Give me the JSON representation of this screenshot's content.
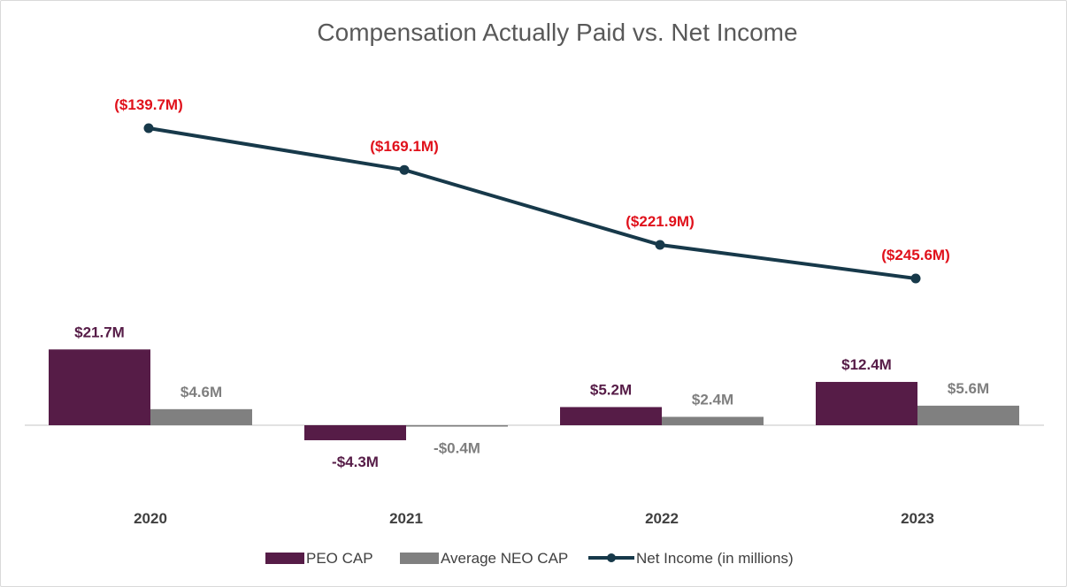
{
  "chart_data": {
    "type": "bar",
    "title": "Compensation Actually Paid vs. Net Income",
    "categories": [
      "2020",
      "2021",
      "2022",
      "2023"
    ],
    "series": [
      {
        "name": "PEO CAP",
        "kind": "bar",
        "color": "#561c47",
        "values": [
          21.7,
          -4.3,
          5.2,
          12.4
        ],
        "labels": [
          "$21.7M",
          "-$4.3M",
          "$5.2M",
          "$12.4M"
        ],
        "label_color": "#561c47"
      },
      {
        "name": "Average NEO CAP",
        "kind": "bar",
        "color": "#808080",
        "values": [
          4.6,
          -0.4,
          2.4,
          5.6
        ],
        "labels": [
          "$4.6M",
          "-$0.4M",
          "$2.4M",
          "$5.6M"
        ],
        "label_color": "#7f7f7f"
      },
      {
        "name": "Net Income (in millions)",
        "kind": "line",
        "color": "#17394a",
        "values": [
          -139.7,
          -169.1,
          -221.9,
          -245.6
        ],
        "labels": [
          "($139.7M)",
          "($169.1M)",
          "($221.9M)",
          "($245.6M)"
        ],
        "label_color": "#e0111b"
      }
    ],
    "xlabel": "",
    "ylabel": "",
    "grid": false,
    "legend": "bottom-center"
  }
}
